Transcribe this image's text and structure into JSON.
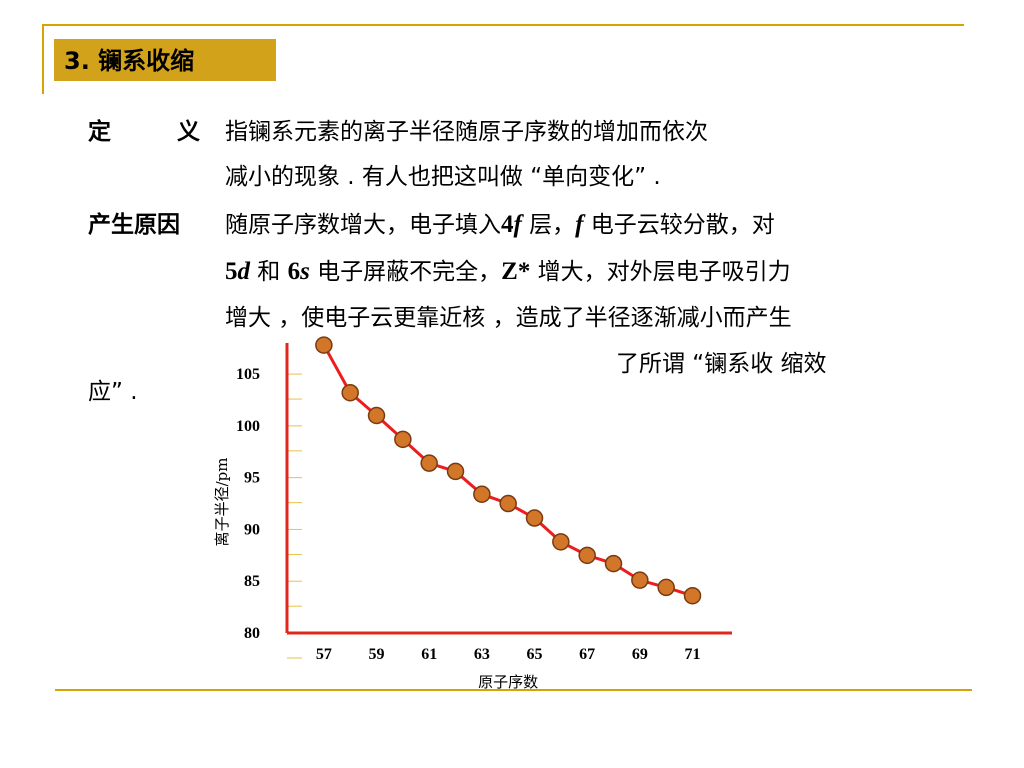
{
  "title": "3.  镧系收缩",
  "definition": {
    "term_left": "定",
    "term_right": "义",
    "line1": "指镧系元素的离子半径随原子序数的增加而依次",
    "line2": "减小的现象 . 有人也把这叫做 “单向变化” ."
  },
  "cause": {
    "term": "产生原因",
    "l1_a": "随原子序数增大，电子填入",
    "l1_num": "4",
    "l1_f": "f",
    "l1_b": " 层，",
    "l1_f2": "f",
    "l1_c": " 电子云较分散，对",
    "l2_5": "5",
    "l2_d": "d",
    "l2_and": " 和 ",
    "l2_6": "6",
    "l2_s": "s",
    "l2_b": " 电子屏蔽不完全，",
    "l2_z": "Z*",
    "l2_c": " 增大，对外层电子吸引力",
    "line3": "增大 ，使电子云更靠近核 ，造成了半径逐渐减小而产生",
    "line4": "了所谓 “镧系收 缩效",
    "line5": "应” ."
  },
  "chart_data": {
    "type": "line",
    "xlabel": "原子序数",
    "ylabel": "离子半径/pm",
    "x_ticks": [
      "57",
      "59",
      "61",
      "63",
      "65",
      "67",
      "69",
      "71"
    ],
    "y_ticks": [
      "105",
      "100",
      "95",
      "90",
      "85",
      "80"
    ],
    "xlim": [
      55.6,
      72.5
    ],
    "ylim": [
      80,
      108
    ],
    "series": [
      {
        "x": [
          57,
          58,
          59,
          60,
          61,
          62,
          63,
          64,
          65,
          66,
          67,
          68,
          69,
          70,
          71
        ],
        "values": [
          107.8,
          103.2,
          101.0,
          98.7,
          96.4,
          95.6,
          93.4,
          92.5,
          91.1,
          88.8,
          87.5,
          86.7,
          85.1,
          84.4,
          83.6
        ]
      }
    ],
    "colors": {
      "line": "#ee1c1c",
      "marker_fill": "#d2762a",
      "marker_stroke": "#7a3a10",
      "axis": "#e0271b",
      "grid_tick": "#e8c24a"
    }
  }
}
